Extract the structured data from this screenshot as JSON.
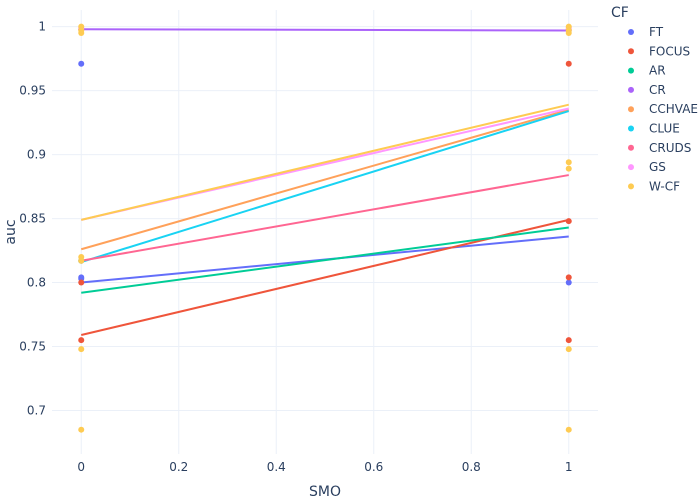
{
  "chart_data": {
    "type": "scatter",
    "xlabel": "SMO",
    "ylabel": "auc",
    "xlim": [
      -0.06,
      1.06
    ],
    "ylim": [
      0.666,
      1.013
    ],
    "x_ticks": [
      0,
      0.2,
      0.4,
      0.6,
      0.8,
      1
    ],
    "x_tick_labels": [
      "0",
      "0.2",
      "0.4",
      "0.6",
      "0.8",
      "1"
    ],
    "y_ticks": [
      0.7,
      0.75,
      0.8,
      0.85,
      0.9,
      0.95,
      1
    ],
    "y_tick_labels": [
      "0.7",
      "0.75",
      "0.8",
      "0.85",
      "0.9",
      "0.95",
      "1"
    ],
    "grid": true,
    "legend_title": "CF",
    "legend_position": "right",
    "series": [
      {
        "name": "FT",
        "color": "#636efa",
        "points": [
          [
            0,
            0.971
          ],
          [
            0,
            0.804
          ],
          [
            0,
            0.803
          ],
          [
            1,
            0.8
          ]
        ],
        "trend": [
          [
            0,
            0.8
          ],
          [
            1,
            0.836
          ]
        ]
      },
      {
        "name": "FOCUS",
        "color": "#EF553B",
        "points": [
          [
            0,
            0.755
          ],
          [
            0,
            0.8
          ],
          [
            1,
            0.971
          ],
          [
            1,
            0.848
          ],
          [
            1,
            0.804
          ],
          [
            1,
            0.755
          ]
        ],
        "trend": [
          [
            0,
            0.759
          ],
          [
            1,
            0.849
          ]
        ]
      },
      {
        "name": "AR",
        "color": "#00cc96",
        "points": [],
        "trend": [
          [
            0,
            0.792
          ],
          [
            1,
            0.843
          ]
        ]
      },
      {
        "name": "CR",
        "color": "#ab63fa",
        "points": [
          [
            0,
            0.998
          ],
          [
            1,
            0.997
          ]
        ],
        "trend": [
          [
            0,
            0.998
          ],
          [
            1,
            0.997
          ]
        ]
      },
      {
        "name": "CCHVAE",
        "color": "#FFA15A",
        "points": [
          [
            0,
            0.817
          ],
          [
            0,
            0.998
          ],
          [
            1,
            0.998
          ]
        ],
        "trend": [
          [
            0,
            0.826
          ],
          [
            1,
            0.935
          ]
        ]
      },
      {
        "name": "CLUE",
        "color": "#19d3f3",
        "points": [
          [
            0,
            0.817
          ]
        ],
        "trend": [
          [
            0,
            0.816
          ],
          [
            1,
            0.934
          ]
        ]
      },
      {
        "name": "CRUDS",
        "color": "#FF6692",
        "points": [],
        "trend": [
          [
            0,
            0.817
          ],
          [
            1,
            0.884
          ]
        ]
      },
      {
        "name": "GS",
        "color": "#FF97FF",
        "points": [
          [
            0,
            0.999
          ],
          [
            1,
            0.999
          ]
        ],
        "trend": [
          [
            0,
            0.849
          ],
          [
            1,
            0.936
          ]
        ]
      },
      {
        "name": "W-CF",
        "color": "#FECB52",
        "points": [
          [
            0,
            1.0
          ],
          [
            0,
            0.997
          ],
          [
            0,
            0.995
          ],
          [
            0,
            0.82
          ],
          [
            0,
            0.817
          ],
          [
            0,
            0.748
          ],
          [
            0,
            0.685
          ],
          [
            1,
            1.0
          ],
          [
            1,
            0.997
          ],
          [
            1,
            0.995
          ],
          [
            1,
            0.894
          ],
          [
            1,
            0.889
          ],
          [
            1,
            0.748
          ],
          [
            1,
            0.685
          ]
        ],
        "trend": [
          [
            0,
            0.849
          ],
          [
            1,
            0.939
          ]
        ]
      }
    ]
  }
}
